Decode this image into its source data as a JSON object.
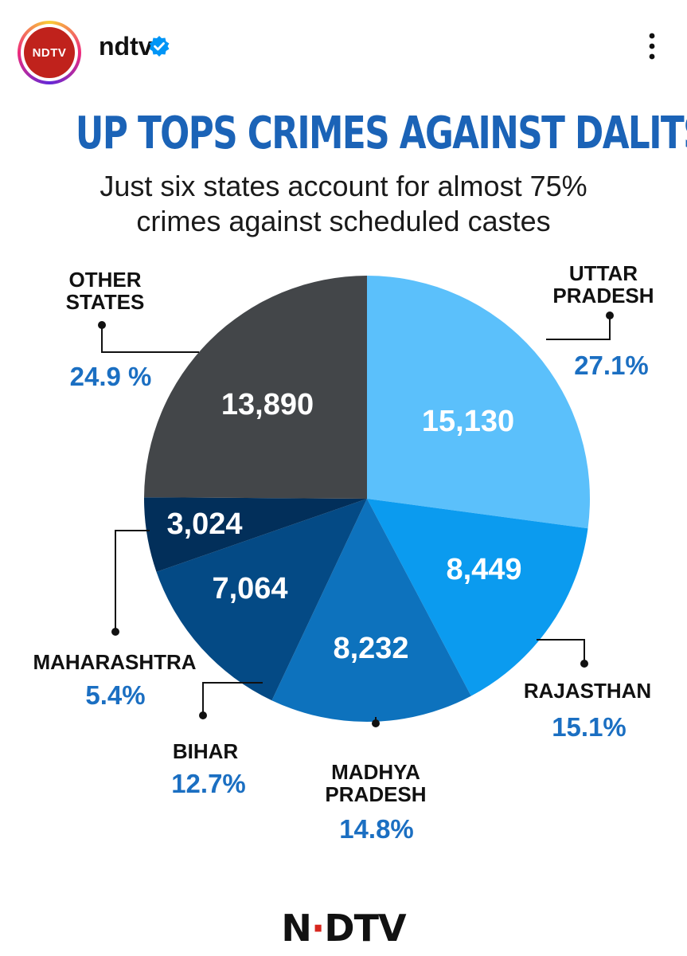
{
  "post": {
    "account": "ndtv",
    "avatar_text": "NDTV",
    "verified_icon": "verified-badge-icon",
    "more_icon": "more-options-icon"
  },
  "infographic": {
    "title": "UP TOPS CRIMES AGAINST DALITS",
    "subtitle_line1": "Just six states account for almost 75%",
    "subtitle_line2": "crimes against scheduled castes",
    "footer_logo_left": "N",
    "footer_logo_dot": "·",
    "footer_logo_right": "DTV"
  },
  "colors": {
    "title_blue": "#1b63b7",
    "percent_blue": "#1b6fc2",
    "brand_red": "#c0221c"
  },
  "chart_data": {
    "type": "pie",
    "title": "UP TOPS CRIMES AGAINST DALITS",
    "start_angle_deg": 0,
    "direction": "clockwise",
    "slices": [
      {
        "name_lines": [
          "UTTAR",
          "PRADESH"
        ],
        "value": 15130,
        "value_label": "15,130",
        "percent_label": "27.1%",
        "color": "#5bc0fb"
      },
      {
        "name_lines": [
          "RAJASTHAN"
        ],
        "value": 8449,
        "value_label": "8,449",
        "percent_label": "15.1%",
        "color": "#0b9bef"
      },
      {
        "name_lines": [
          "MADHYA",
          "PRADESH"
        ],
        "value": 8232,
        "value_label": "8,232",
        "percent_label": "14.8%",
        "color": "#0d72bd"
      },
      {
        "name_lines": [
          "BIHAR"
        ],
        "value": 7064,
        "value_label": "7,064",
        "percent_label": "12.7%",
        "color": "#044a85"
      },
      {
        "name_lines": [
          "MAHARASHTRA"
        ],
        "value": 3024,
        "value_label": "3,024",
        "percent_label": "5.4%",
        "color": "#022f5a"
      },
      {
        "name_lines": [
          "OTHER",
          "STATES"
        ],
        "value": 13890,
        "value_label": "13,890",
        "percent_label": "24.9 %",
        "color": "#434649"
      }
    ]
  }
}
